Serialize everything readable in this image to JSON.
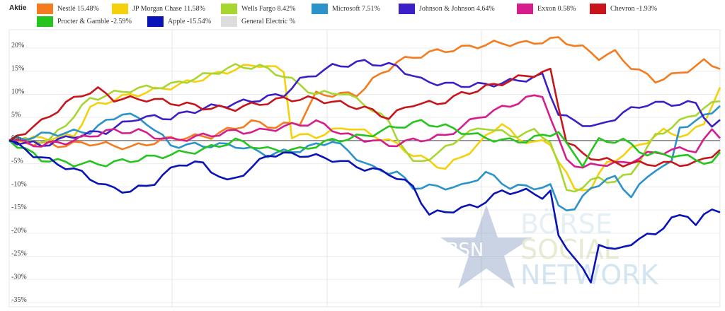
{
  "legend": {
    "header": "Aktie",
    "items": [
      {
        "name": "Nestlé",
        "change": "15.48%",
        "color": "#f47c20"
      },
      {
        "name": "JP Morgan Chase",
        "change": "11.58%",
        "color": "#f5d10c"
      },
      {
        "name": "Wells Fargo",
        "change": "8.42%",
        "color": "#a8d631"
      },
      {
        "name": "Microsoft",
        "change": "7.51%",
        "color": "#2b93c9"
      },
      {
        "name": "Johnson & Johnson",
        "change": "4.64%",
        "color": "#3d1fc7"
      },
      {
        "name": "Exxon",
        "change": "0.58%",
        "color": "#d51e8c"
      },
      {
        "name": "Chevron",
        "change": "-1.93%",
        "color": "#c8151b"
      },
      {
        "name": "Procter & Gamble",
        "change": "-2.59%",
        "color": "#25c41e"
      },
      {
        "name": "Apple",
        "change": "-15.54%",
        "color": "#0a13b8"
      },
      {
        "name": "General Electric",
        "change": "%",
        "color": "#dddddd"
      }
    ]
  },
  "watermark": {
    "badge": "BSN",
    "line1": "BÖRSE",
    "line2": "SOCIAL",
    "line3": "NETWORK"
  },
  "chart_data": {
    "type": "line",
    "title": "",
    "xlabel": "",
    "ylabel": "",
    "ylim": [
      -35,
      22
    ],
    "yticks": [
      20,
      15,
      10,
      5,
      0,
      -5,
      -10,
      -15,
      -20,
      -25,
      -30,
      -35
    ],
    "ytick_format": "percent",
    "grid": true,
    "legend_position": "top",
    "n_points": 89,
    "series": [
      {
        "name": "Nestlé",
        "color": "#f47c20",
        "anchors": [
          [
            0,
            0
          ],
          [
            6,
            -1
          ],
          [
            10,
            -0.5
          ],
          [
            15,
            -1.5
          ],
          [
            20,
            0.5
          ],
          [
            25,
            1
          ],
          [
            30,
            4
          ],
          [
            33,
            3
          ],
          [
            36,
            4
          ],
          [
            38,
            10
          ],
          [
            40,
            10
          ],
          [
            43,
            10
          ],
          [
            45,
            13
          ],
          [
            48,
            17
          ],
          [
            52,
            19
          ],
          [
            56,
            20
          ],
          [
            60,
            21
          ],
          [
            64,
            21
          ],
          [
            68,
            22
          ],
          [
            71,
            20
          ],
          [
            73,
            18
          ],
          [
            75,
            19
          ],
          [
            77,
            16
          ],
          [
            80,
            13
          ],
          [
            83,
            14.5
          ],
          [
            86,
            17
          ],
          [
            88,
            15.5
          ]
        ]
      },
      {
        "name": "JP Morgan Chase",
        "color": "#f5d10c",
        "anchors": [
          [
            0,
            0
          ],
          [
            4,
            0.5
          ],
          [
            8,
            1
          ],
          [
            10,
            7
          ],
          [
            13,
            9
          ],
          [
            17,
            10.5
          ],
          [
            21,
            12
          ],
          [
            25,
            14
          ],
          [
            28,
            15.5
          ],
          [
            31,
            16.5
          ],
          [
            34,
            15
          ],
          [
            35,
            1
          ],
          [
            38,
            1
          ],
          [
            42,
            3
          ],
          [
            47,
            0
          ],
          [
            50,
            -3
          ],
          [
            54,
            -6
          ],
          [
            58,
            -1
          ],
          [
            61,
            4
          ],
          [
            63,
            0
          ],
          [
            65,
            0
          ],
          [
            67,
            -1
          ],
          [
            68,
            -4
          ],
          [
            69,
            -7
          ],
          [
            70,
            -11
          ],
          [
            72,
            -10
          ],
          [
            74,
            -5
          ],
          [
            76,
            -3
          ],
          [
            79,
            0
          ],
          [
            81,
            2
          ],
          [
            84,
            1
          ],
          [
            86,
            4
          ],
          [
            88,
            11.5
          ]
        ]
      },
      {
        "name": "Wells Fargo",
        "color": "#a8d631",
        "anchors": [
          [
            0,
            0
          ],
          [
            5,
            0
          ],
          [
            10,
            9
          ],
          [
            15,
            11
          ],
          [
            20,
            12
          ],
          [
            24,
            14
          ],
          [
            28,
            16
          ],
          [
            31,
            16
          ],
          [
            34,
            14
          ],
          [
            38,
            10
          ],
          [
            41,
            10.5
          ],
          [
            44,
            8
          ],
          [
            47,
            4
          ],
          [
            50,
            -5
          ],
          [
            53,
            -3
          ],
          [
            56,
            1
          ],
          [
            59,
            3
          ],
          [
            62,
            1
          ],
          [
            65,
            2
          ],
          [
            67,
            0
          ],
          [
            69,
            -11
          ],
          [
            71,
            -10
          ],
          [
            73,
            -8
          ],
          [
            75,
            -9
          ],
          [
            77,
            -7
          ],
          [
            80,
            1
          ],
          [
            83,
            4
          ],
          [
            86,
            7
          ],
          [
            88,
            8.5
          ]
        ]
      },
      {
        "name": "Microsoft",
        "color": "#2b93c9",
        "anchors": [
          [
            0,
            0
          ],
          [
            5,
            1.5
          ],
          [
            10,
            2
          ],
          [
            14,
            6
          ],
          [
            17,
            4
          ],
          [
            20,
            -1
          ],
          [
            24,
            -1
          ],
          [
            28,
            -1
          ],
          [
            32,
            -3
          ],
          [
            36,
            -2
          ],
          [
            40,
            0
          ],
          [
            45,
            -6
          ],
          [
            48,
            -7
          ],
          [
            50,
            -10
          ],
          [
            53,
            -10
          ],
          [
            56,
            -10
          ],
          [
            59,
            -7
          ],
          [
            62,
            -10
          ],
          [
            65,
            -10
          ],
          [
            67,
            -10
          ],
          [
            68,
            -14
          ],
          [
            70,
            -15
          ],
          [
            72,
            -10
          ],
          [
            75,
            -8
          ],
          [
            77,
            -12
          ],
          [
            80,
            -6
          ],
          [
            82,
            -5
          ],
          [
            83,
            3
          ],
          [
            85,
            4
          ],
          [
            88,
            7.5
          ]
        ]
      },
      {
        "name": "Johnson & Johnson",
        "color": "#3d1fc7",
        "anchors": [
          [
            0,
            0
          ],
          [
            4,
            -1
          ],
          [
            8,
            1
          ],
          [
            12,
            2
          ],
          [
            16,
            5
          ],
          [
            20,
            5
          ],
          [
            24,
            7
          ],
          [
            28,
            8
          ],
          [
            31,
            9
          ],
          [
            34,
            10
          ],
          [
            36,
            13
          ],
          [
            40,
            16
          ],
          [
            44,
            17
          ],
          [
            48,
            16
          ],
          [
            51,
            13
          ],
          [
            55,
            12
          ],
          [
            59,
            12
          ],
          [
            63,
            13
          ],
          [
            66,
            14
          ],
          [
            68,
            6
          ],
          [
            70,
            4
          ],
          [
            73,
            3
          ],
          [
            76,
            6
          ],
          [
            79,
            8
          ],
          [
            82,
            8
          ],
          [
            85,
            8
          ],
          [
            87,
            3
          ],
          [
            88,
            4.5
          ]
        ]
      },
      {
        "name": "Exxon",
        "color": "#d51e8c",
        "anchors": [
          [
            0,
            0
          ],
          [
            4,
            -1
          ],
          [
            8,
            0
          ],
          [
            12,
            2
          ],
          [
            16,
            2
          ],
          [
            20,
            0
          ],
          [
            24,
            1
          ],
          [
            28,
            2
          ],
          [
            31,
            2
          ],
          [
            34,
            3
          ],
          [
            38,
            4
          ],
          [
            42,
            1
          ],
          [
            45,
            0
          ],
          [
            47,
            -1
          ],
          [
            50,
            0
          ],
          [
            54,
            1
          ],
          [
            58,
            5
          ],
          [
            61,
            7
          ],
          [
            64,
            9
          ],
          [
            66,
            10
          ],
          [
            68,
            0
          ],
          [
            69,
            -4
          ],
          [
            71,
            -6
          ],
          [
            73,
            -5
          ],
          [
            76,
            -5
          ],
          [
            79,
            -3
          ],
          [
            82,
            -2
          ],
          [
            85,
            -2
          ],
          [
            87,
            2
          ],
          [
            88,
            0.5
          ]
        ]
      },
      {
        "name": "Chevron",
        "color": "#c8151b",
        "anchors": [
          [
            0,
            0
          ],
          [
            4,
            4
          ],
          [
            7,
            8
          ],
          [
            9,
            10
          ],
          [
            11,
            11
          ],
          [
            13,
            9
          ],
          [
            17,
            9
          ],
          [
            21,
            8
          ],
          [
            25,
            7
          ],
          [
            28,
            7
          ],
          [
            31,
            8
          ],
          [
            34,
            9
          ],
          [
            38,
            9
          ],
          [
            41,
            8
          ],
          [
            44,
            7
          ],
          [
            47,
            5
          ],
          [
            50,
            8
          ],
          [
            53,
            8
          ],
          [
            56,
            10
          ],
          [
            60,
            12
          ],
          [
            64,
            14
          ],
          [
            67,
            15
          ],
          [
            69,
            0
          ],
          [
            71,
            -3
          ],
          [
            73,
            -4
          ],
          [
            76,
            -5
          ],
          [
            79,
            -5
          ],
          [
            82,
            -5
          ],
          [
            85,
            -5
          ],
          [
            87,
            -3
          ],
          [
            88,
            -2
          ]
        ]
      },
      {
        "name": "Procter & Gamble",
        "color": "#25c41e",
        "anchors": [
          [
            0,
            0
          ],
          [
            4,
            -4
          ],
          [
            8,
            -5
          ],
          [
            12,
            -5
          ],
          [
            16,
            -4
          ],
          [
            20,
            -3
          ],
          [
            24,
            -2
          ],
          [
            28,
            0
          ],
          [
            32,
            -2
          ],
          [
            36,
            -2
          ],
          [
            40,
            0
          ],
          [
            44,
            1
          ],
          [
            48,
            3
          ],
          [
            51,
            4
          ],
          [
            54,
            3
          ],
          [
            58,
            1
          ],
          [
            61,
            0
          ],
          [
            64,
            0
          ],
          [
            66,
            1
          ],
          [
            68,
            2
          ],
          [
            69,
            -1
          ],
          [
            71,
            -5
          ],
          [
            73,
            0
          ],
          [
            76,
            0
          ],
          [
            79,
            -3
          ],
          [
            82,
            -3
          ],
          [
            85,
            -4
          ],
          [
            87,
            -5
          ],
          [
            88,
            -2.5
          ]
        ]
      },
      {
        "name": "Apple",
        "color": "#0a13b8",
        "anchors": [
          [
            0,
            0
          ],
          [
            3,
            -3
          ],
          [
            6,
            -5
          ],
          [
            9,
            -7
          ],
          [
            12,
            -10
          ],
          [
            15,
            -11
          ],
          [
            18,
            -9
          ],
          [
            21,
            -5
          ],
          [
            24,
            -5
          ],
          [
            27,
            -9
          ],
          [
            30,
            -6
          ],
          [
            32,
            -3
          ],
          [
            36,
            -3
          ],
          [
            40,
            -4
          ],
          [
            44,
            -6
          ],
          [
            47,
            -7
          ],
          [
            50,
            -10
          ],
          [
            52,
            -16
          ],
          [
            55,
            -15
          ],
          [
            58,
            -14
          ],
          [
            61,
            -11
          ],
          [
            64,
            -11
          ],
          [
            66,
            -12
          ],
          [
            67,
            -11
          ],
          [
            68,
            -21
          ],
          [
            70,
            -25
          ],
          [
            72,
            -31
          ],
          [
            73,
            -22
          ],
          [
            75,
            -24
          ],
          [
            77,
            -22
          ],
          [
            80,
            -20
          ],
          [
            82,
            -17
          ],
          [
            84,
            -16
          ],
          [
            85,
            -18
          ],
          [
            87,
            -15
          ],
          [
            88,
            -15.5
          ]
        ]
      }
    ]
  }
}
